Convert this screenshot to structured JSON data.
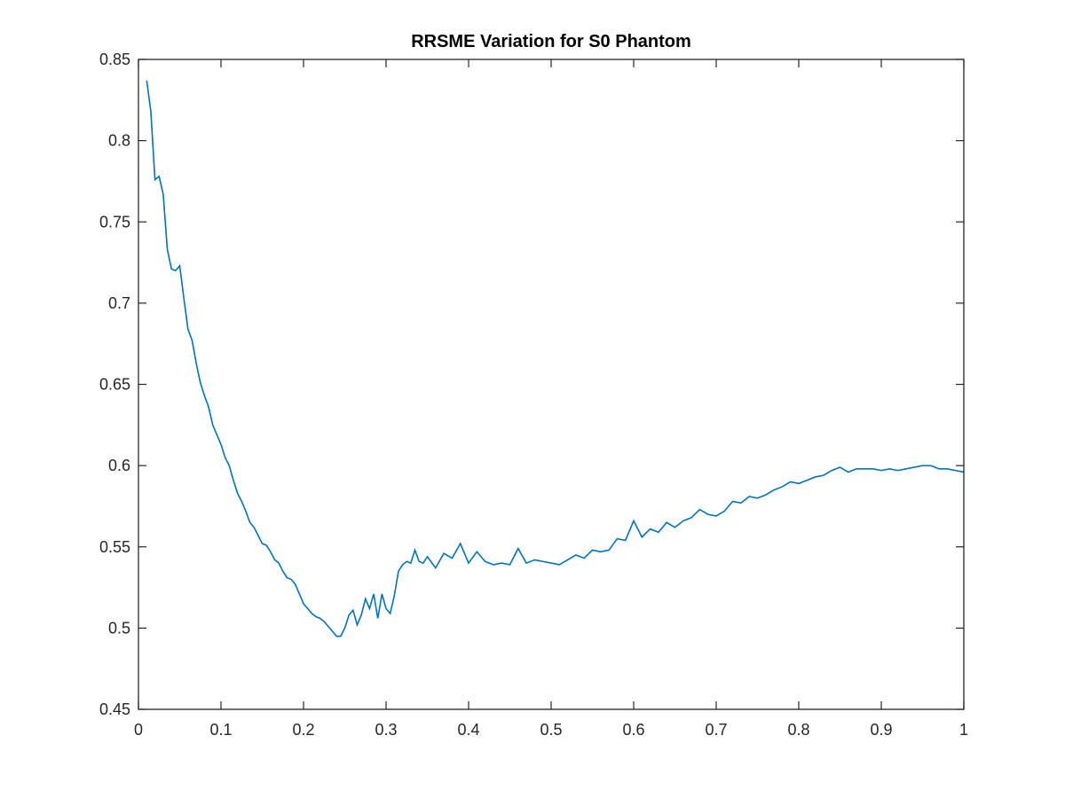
{
  "chart_data": {
    "type": "line",
    "title": "RRSME Variation for S0 Phantom",
    "xlabel": "",
    "ylabel": "",
    "xlim": [
      0,
      1
    ],
    "ylim": [
      0.45,
      0.85
    ],
    "xticks": [
      0,
      0.1,
      0.2,
      0.3,
      0.4,
      0.5,
      0.6,
      0.7,
      0.8,
      0.9,
      1
    ],
    "xtick_labels": [
      "0",
      "0.1",
      "0.2",
      "0.3",
      "0.4",
      "0.5",
      "0.6",
      "0.7",
      "0.8",
      "0.9",
      "1"
    ],
    "yticks": [
      0.45,
      0.5,
      0.55,
      0.6,
      0.65,
      0.7,
      0.75,
      0.8,
      0.85
    ],
    "ytick_labels": [
      "0.45",
      "0.5",
      "0.55",
      "0.6",
      "0.65",
      "0.7",
      "0.75",
      "0.8",
      "0.85"
    ],
    "grid": false,
    "box": true,
    "line_color": "#0072bd",
    "axis_color": "#262626",
    "series": [
      {
        "x": [
          0.01,
          0.015,
          0.02,
          0.025,
          0.03,
          0.035,
          0.04,
          0.045,
          0.05,
          0.055,
          0.06,
          0.065,
          0.07,
          0.075,
          0.08,
          0.085,
          0.09,
          0.095,
          0.1,
          0.105,
          0.11,
          0.115,
          0.12,
          0.125,
          0.13,
          0.135,
          0.14,
          0.145,
          0.15,
          0.155,
          0.16,
          0.165,
          0.17,
          0.175,
          0.18,
          0.185,
          0.19,
          0.195,
          0.2,
          0.205,
          0.21,
          0.215,
          0.22,
          0.225,
          0.23,
          0.235,
          0.24,
          0.245,
          0.25,
          0.255,
          0.26,
          0.265,
          0.27,
          0.275,
          0.28,
          0.285,
          0.29,
          0.295,
          0.3,
          0.305,
          0.31,
          0.315,
          0.32,
          0.325,
          0.33,
          0.335,
          0.34,
          0.345,
          0.35,
          0.36,
          0.37,
          0.38,
          0.39,
          0.4,
          0.41,
          0.42,
          0.43,
          0.44,
          0.45,
          0.46,
          0.47,
          0.48,
          0.49,
          0.5,
          0.51,
          0.52,
          0.53,
          0.54,
          0.55,
          0.56,
          0.57,
          0.58,
          0.59,
          0.6,
          0.61,
          0.62,
          0.63,
          0.64,
          0.65,
          0.66,
          0.67,
          0.68,
          0.69,
          0.7,
          0.71,
          0.72,
          0.73,
          0.74,
          0.75,
          0.76,
          0.77,
          0.78,
          0.79,
          0.8,
          0.81,
          0.82,
          0.83,
          0.84,
          0.85,
          0.86,
          0.87,
          0.88,
          0.89,
          0.9,
          0.91,
          0.92,
          0.93,
          0.94,
          0.95,
          0.96,
          0.97,
          0.98,
          0.99,
          1.0
        ],
        "y": [
          0.837,
          0.818,
          0.776,
          0.778,
          0.767,
          0.733,
          0.721,
          0.72,
          0.723,
          0.703,
          0.684,
          0.677,
          0.663,
          0.651,
          0.643,
          0.636,
          0.625,
          0.619,
          0.613,
          0.605,
          0.6,
          0.591,
          0.583,
          0.578,
          0.572,
          0.565,
          0.562,
          0.557,
          0.552,
          0.551,
          0.547,
          0.542,
          0.54,
          0.535,
          0.531,
          0.53,
          0.527,
          0.521,
          0.515,
          0.512,
          0.509,
          0.507,
          0.506,
          0.504,
          0.501,
          0.498,
          0.495,
          0.495,
          0.5,
          0.508,
          0.511,
          0.502,
          0.508,
          0.518,
          0.512,
          0.521,
          0.506,
          0.521,
          0.512,
          0.509,
          0.52,
          0.535,
          0.539,
          0.541,
          0.54,
          0.548,
          0.541,
          0.54,
          0.544,
          0.537,
          0.546,
          0.543,
          0.552,
          0.54,
          0.547,
          0.541,
          0.539,
          0.54,
          0.539,
          0.549,
          0.54,
          0.542,
          0.541,
          0.54,
          0.539,
          0.542,
          0.545,
          0.543,
          0.548,
          0.547,
          0.548,
          0.555,
          0.554,
          0.566,
          0.556,
          0.561,
          0.559,
          0.565,
          0.562,
          0.566,
          0.568,
          0.573,
          0.57,
          0.569,
          0.572,
          0.578,
          0.577,
          0.581,
          0.58,
          0.582,
          0.585,
          0.587,
          0.59,
          0.589,
          0.591,
          0.593,
          0.594,
          0.597,
          0.599,
          0.596,
          0.598,
          0.598,
          0.598,
          0.597,
          0.598,
          0.597,
          0.598,
          0.599,
          0.6,
          0.6,
          0.598,
          0.598,
          0.597,
          0.596
        ]
      }
    ]
  }
}
